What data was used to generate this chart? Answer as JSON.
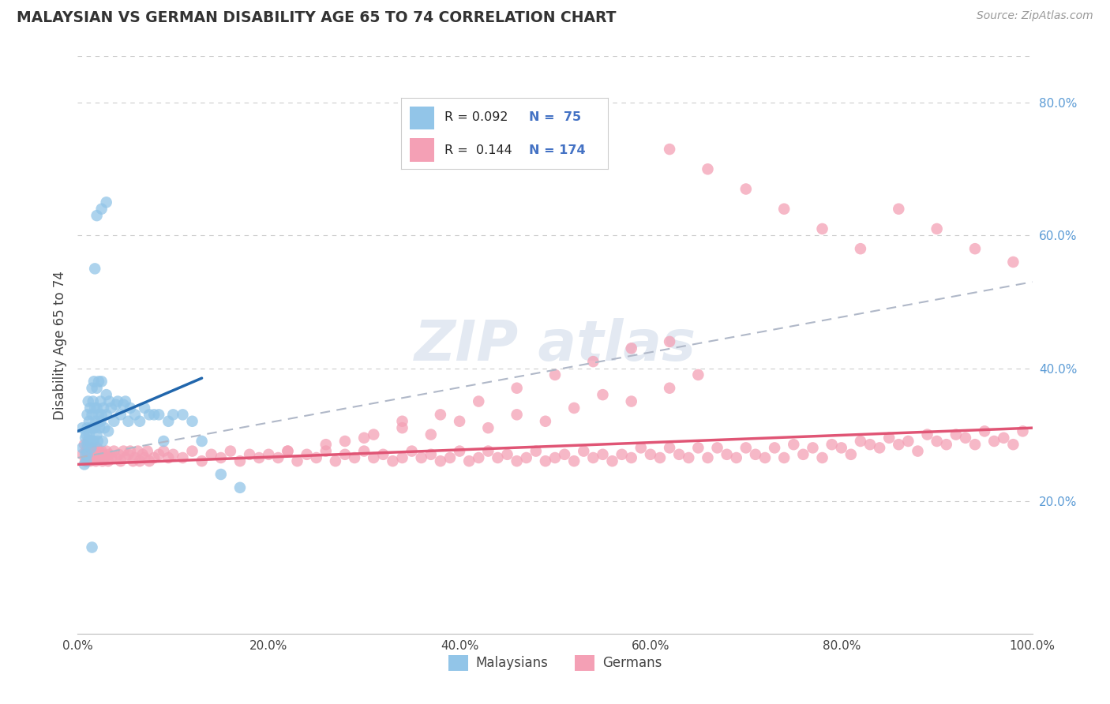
{
  "title": "MALAYSIAN VS GERMAN DISABILITY AGE 65 TO 74 CORRELATION CHART",
  "source_text": "Source: ZipAtlas.com",
  "ylabel": "Disability Age 65 to 74",
  "xlim": [
    0,
    1.0
  ],
  "ylim": [
    0,
    0.87
  ],
  "xticks": [
    0.0,
    0.2,
    0.4,
    0.6,
    0.8,
    1.0
  ],
  "xtick_labels": [
    "0.0%",
    "20.0%",
    "40.0%",
    "60.0%",
    "80.0%",
    "100.0%"
  ],
  "yticks": [
    0.2,
    0.4,
    0.6,
    0.8
  ],
  "ytick_labels": [
    "20.0%",
    "40.0%",
    "60.0%",
    "80.0%"
  ],
  "grid_color": "#cccccc",
  "background_color": "#ffffff",
  "legend_label1": "Malaysians",
  "legend_label2": "Germans",
  "blue_color": "#92c5e8",
  "blue_line_color": "#2166ac",
  "pink_color": "#f4a0b5",
  "pink_line_color": "#e05575",
  "dashed_line_color": "#b0b8c8",
  "blue_trend_x": [
    0.0,
    0.13
  ],
  "blue_trend_y": [
    0.305,
    0.385
  ],
  "pink_trend_x": [
    0.0,
    1.0
  ],
  "pink_trend_y": [
    0.255,
    0.31
  ],
  "dash_trend_x": [
    0.0,
    1.0
  ],
  "dash_trend_y": [
    0.265,
    0.53
  ],
  "watermark_color": "#ccd8e8",
  "watermark_alpha": 0.55,
  "malaysian_x": [
    0.005,
    0.005,
    0.007,
    0.008,
    0.008,
    0.009,
    0.009,
    0.01,
    0.01,
    0.01,
    0.01,
    0.011,
    0.011,
    0.012,
    0.012,
    0.013,
    0.013,
    0.014,
    0.014,
    0.015,
    0.015,
    0.015,
    0.016,
    0.016,
    0.017,
    0.017,
    0.018,
    0.018,
    0.019,
    0.02,
    0.02,
    0.02,
    0.021,
    0.022,
    0.022,
    0.023,
    0.024,
    0.024,
    0.025,
    0.025,
    0.026,
    0.027,
    0.028,
    0.03,
    0.03,
    0.032,
    0.033,
    0.035,
    0.038,
    0.04,
    0.042,
    0.045,
    0.048,
    0.05,
    0.053,
    0.055,
    0.06,
    0.065,
    0.07,
    0.075,
    0.08,
    0.085,
    0.09,
    0.095,
    0.1,
    0.11,
    0.12,
    0.13,
    0.15,
    0.17,
    0.03,
    0.025,
    0.02,
    0.018,
    0.015
  ],
  "malaysian_y": [
    0.28,
    0.31,
    0.255,
    0.27,
    0.295,
    0.26,
    0.3,
    0.285,
    0.31,
    0.33,
    0.27,
    0.35,
    0.29,
    0.3,
    0.32,
    0.29,
    0.34,
    0.28,
    0.31,
    0.33,
    0.29,
    0.37,
    0.31,
    0.35,
    0.29,
    0.38,
    0.31,
    0.34,
    0.32,
    0.3,
    0.34,
    0.37,
    0.29,
    0.33,
    0.38,
    0.31,
    0.35,
    0.32,
    0.33,
    0.38,
    0.29,
    0.34,
    0.31,
    0.33,
    0.36,
    0.305,
    0.35,
    0.34,
    0.32,
    0.345,
    0.35,
    0.33,
    0.345,
    0.35,
    0.32,
    0.34,
    0.33,
    0.32,
    0.34,
    0.33,
    0.33,
    0.33,
    0.29,
    0.32,
    0.33,
    0.33,
    0.32,
    0.29,
    0.24,
    0.22,
    0.65,
    0.64,
    0.63,
    0.55,
    0.13
  ],
  "german_x": [
    0.005,
    0.007,
    0.008,
    0.009,
    0.01,
    0.01,
    0.011,
    0.012,
    0.013,
    0.014,
    0.015,
    0.015,
    0.016,
    0.017,
    0.018,
    0.019,
    0.02,
    0.02,
    0.021,
    0.022,
    0.023,
    0.024,
    0.025,
    0.026,
    0.027,
    0.028,
    0.03,
    0.032,
    0.033,
    0.035,
    0.038,
    0.04,
    0.043,
    0.045,
    0.048,
    0.05,
    0.053,
    0.055,
    0.058,
    0.06,
    0.063,
    0.065,
    0.068,
    0.07,
    0.073,
    0.075,
    0.08,
    0.085,
    0.09,
    0.095,
    0.1,
    0.11,
    0.12,
    0.13,
    0.14,
    0.15,
    0.16,
    0.17,
    0.18,
    0.19,
    0.2,
    0.21,
    0.22,
    0.23,
    0.24,
    0.25,
    0.26,
    0.27,
    0.28,
    0.29,
    0.3,
    0.31,
    0.32,
    0.33,
    0.34,
    0.35,
    0.36,
    0.37,
    0.38,
    0.39,
    0.4,
    0.41,
    0.42,
    0.43,
    0.44,
    0.45,
    0.46,
    0.47,
    0.48,
    0.49,
    0.5,
    0.51,
    0.52,
    0.53,
    0.54,
    0.55,
    0.56,
    0.57,
    0.58,
    0.59,
    0.6,
    0.61,
    0.62,
    0.63,
    0.64,
    0.65,
    0.66,
    0.67,
    0.68,
    0.69,
    0.7,
    0.71,
    0.72,
    0.73,
    0.74,
    0.75,
    0.76,
    0.77,
    0.78,
    0.79,
    0.8,
    0.81,
    0.82,
    0.83,
    0.84,
    0.85,
    0.86,
    0.87,
    0.88,
    0.89,
    0.9,
    0.91,
    0.92,
    0.93,
    0.94,
    0.95,
    0.96,
    0.97,
    0.98,
    0.99,
    0.62,
    0.65,
    0.58,
    0.55,
    0.52,
    0.49,
    0.46,
    0.43,
    0.4,
    0.37,
    0.34,
    0.31,
    0.28,
    0.62,
    0.58,
    0.54,
    0.5,
    0.46,
    0.42,
    0.38,
    0.34,
    0.3,
    0.26,
    0.22,
    0.62,
    0.66,
    0.7,
    0.74,
    0.78,
    0.82,
    0.86,
    0.9,
    0.94,
    0.98
  ],
  "german_y": [
    0.27,
    0.285,
    0.26,
    0.275,
    0.26,
    0.28,
    0.265,
    0.275,
    0.26,
    0.27,
    0.28,
    0.265,
    0.27,
    0.275,
    0.265,
    0.26,
    0.27,
    0.28,
    0.265,
    0.275,
    0.265,
    0.27,
    0.275,
    0.26,
    0.27,
    0.265,
    0.275,
    0.26,
    0.27,
    0.265,
    0.275,
    0.265,
    0.27,
    0.26,
    0.275,
    0.265,
    0.27,
    0.275,
    0.26,
    0.265,
    0.275,
    0.26,
    0.27,
    0.265,
    0.275,
    0.26,
    0.265,
    0.27,
    0.275,
    0.265,
    0.27,
    0.265,
    0.275,
    0.26,
    0.27,
    0.265,
    0.275,
    0.26,
    0.27,
    0.265,
    0.27,
    0.265,
    0.275,
    0.26,
    0.27,
    0.265,
    0.275,
    0.26,
    0.27,
    0.265,
    0.275,
    0.265,
    0.27,
    0.26,
    0.265,
    0.275,
    0.265,
    0.27,
    0.26,
    0.265,
    0.275,
    0.26,
    0.265,
    0.275,
    0.265,
    0.27,
    0.26,
    0.265,
    0.275,
    0.26,
    0.265,
    0.27,
    0.26,
    0.275,
    0.265,
    0.27,
    0.26,
    0.27,
    0.265,
    0.28,
    0.27,
    0.265,
    0.28,
    0.27,
    0.265,
    0.28,
    0.265,
    0.28,
    0.27,
    0.265,
    0.28,
    0.27,
    0.265,
    0.28,
    0.265,
    0.285,
    0.27,
    0.28,
    0.265,
    0.285,
    0.28,
    0.27,
    0.29,
    0.285,
    0.28,
    0.295,
    0.285,
    0.29,
    0.275,
    0.3,
    0.29,
    0.285,
    0.3,
    0.295,
    0.285,
    0.305,
    0.29,
    0.295,
    0.285,
    0.305,
    0.37,
    0.39,
    0.35,
    0.36,
    0.34,
    0.32,
    0.33,
    0.31,
    0.32,
    0.3,
    0.32,
    0.3,
    0.29,
    0.44,
    0.43,
    0.41,
    0.39,
    0.37,
    0.35,
    0.33,
    0.31,
    0.295,
    0.285,
    0.275,
    0.73,
    0.7,
    0.67,
    0.64,
    0.61,
    0.58,
    0.64,
    0.61,
    0.58,
    0.56
  ]
}
